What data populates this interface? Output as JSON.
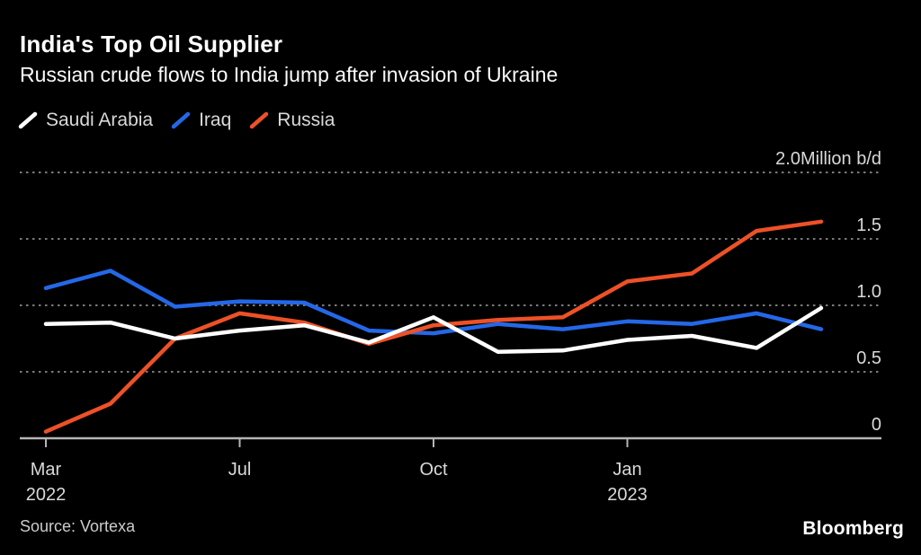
{
  "header": {
    "title": "India's Top Oil Supplier",
    "subtitle": "Russian crude flows to India jump after invasion of Ukraine"
  },
  "legend": [
    {
      "label": "Saudi Arabia",
      "color": "#ffffff"
    },
    {
      "label": "Iraq",
      "color": "#2468e8"
    },
    {
      "label": "Russia",
      "color": "#ee5127"
    }
  ],
  "chart_data": {
    "type": "line",
    "title": "India's Top Oil Supplier",
    "subtitle": "Russian crude flows to India jump after invasion of Ukraine",
    "unit": "Million b/d",
    "x_range_note": "13 evenly spaced points, Mar 2022 through spring 2023",
    "x_ticks": [
      {
        "at": 0,
        "line1": "Mar",
        "line2": "2022"
      },
      {
        "at": 3,
        "line1": "Jul",
        "line2": ""
      },
      {
        "at": 6,
        "line1": "Oct",
        "line2": ""
      },
      {
        "at": 9,
        "line1": "Jan",
        "line2": "2023"
      }
    ],
    "y_ticks": [
      {
        "value": 2.0,
        "label": "2.0Million b/d"
      },
      {
        "value": 1.5,
        "label": "1.5"
      },
      {
        "value": 1.0,
        "label": "1.0"
      },
      {
        "value": 0.5,
        "label": "0.5"
      },
      {
        "value": 0.0,
        "label": "0"
      }
    ],
    "ylim": [
      0,
      2.0
    ],
    "grid": "horizontal-dotted",
    "legend_position": "top-left",
    "axis_label_side": "right",
    "series": [
      {
        "name": "Saudi Arabia",
        "color": "#ffffff",
        "values": [
          0.86,
          0.87,
          0.75,
          0.81,
          0.85,
          0.72,
          0.91,
          0.65,
          0.66,
          0.74,
          0.77,
          0.68,
          0.98
        ]
      },
      {
        "name": "Iraq",
        "color": "#2468e8",
        "values": [
          1.13,
          1.26,
          0.99,
          1.03,
          1.02,
          0.81,
          0.79,
          0.86,
          0.82,
          0.88,
          0.86,
          0.94,
          0.82
        ]
      },
      {
        "name": "Russia",
        "color": "#ee5127",
        "values": [
          0.05,
          0.26,
          0.75,
          0.94,
          0.87,
          0.71,
          0.85,
          0.89,
          0.91,
          1.18,
          1.24,
          1.56,
          1.63
        ]
      }
    ]
  },
  "footer": {
    "source": "Source: Vortexa",
    "brand": "Bloomberg"
  },
  "colors": {
    "background": "#000000",
    "grid": "#7a7a7a",
    "axis": "#b5b5b5",
    "axis_label": "#d9d9d9",
    "title": "#ffffff",
    "subtitle": "#fafafa",
    "source_text": "#cccccc"
  }
}
